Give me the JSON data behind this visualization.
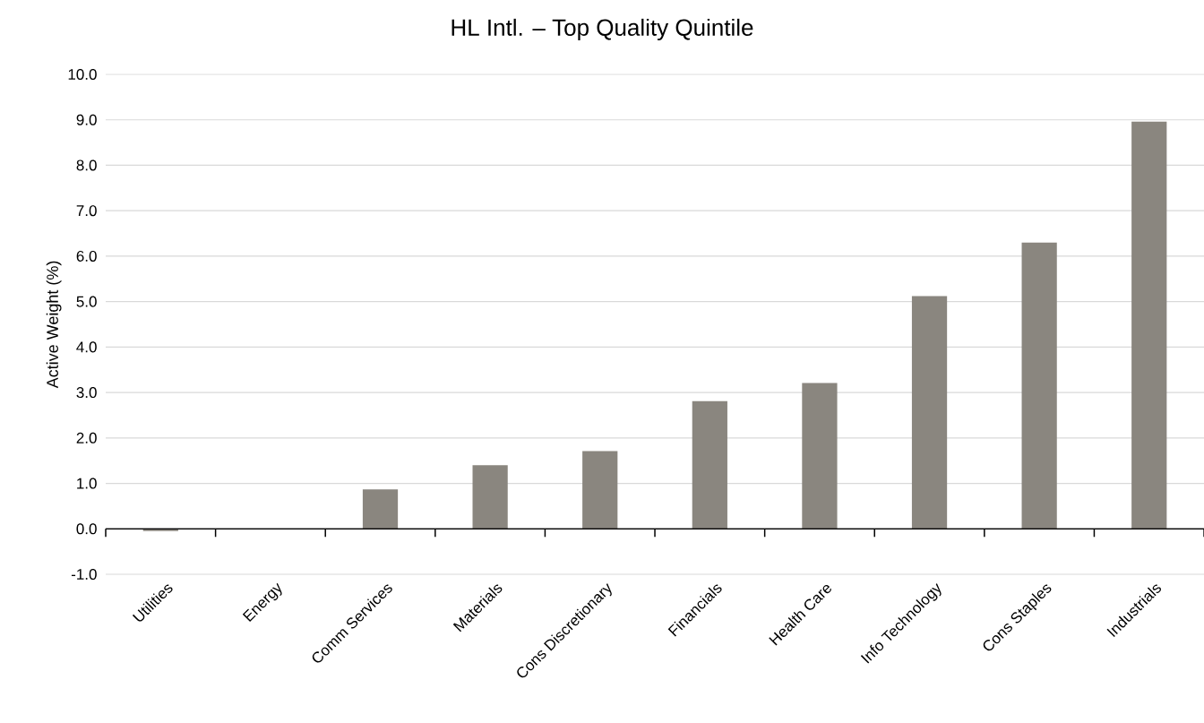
{
  "chart_data": {
    "type": "bar",
    "title": "HL Intl. – Top Quality Quintile",
    "ylabel": "Active Weight (%)",
    "categories": [
      "Utilities",
      "Energy",
      "Comm Services",
      "Materials",
      "Cons Discretionary",
      "Financials",
      "Health Care",
      "Info Technology",
      "Cons Staples",
      "Industrials"
    ],
    "values": [
      -0.05,
      0,
      0.87,
      1.4,
      1.71,
      2.81,
      3.21,
      5.12,
      6.3,
      8.96
    ],
    "color": "#8a867f",
    "ylim": [
      -1,
      10
    ],
    "yticks": [
      {
        "value": -1,
        "label": "-1.0"
      },
      {
        "value": 0,
        "label": "0.0"
      },
      {
        "value": 1,
        "label": "1.0"
      },
      {
        "value": 2,
        "label": "2.0"
      },
      {
        "value": 3,
        "label": "3.0"
      },
      {
        "value": 4,
        "label": "4.0"
      },
      {
        "value": 5,
        "label": "5.0"
      },
      {
        "value": 6,
        "label": "6.0"
      },
      {
        "value": 7,
        "label": "7.0"
      },
      {
        "value": 8,
        "label": "8.0"
      },
      {
        "value": 9,
        "label": "9.0"
      },
      {
        "value": 10,
        "label": "10.0"
      }
    ],
    "grid": "y"
  }
}
